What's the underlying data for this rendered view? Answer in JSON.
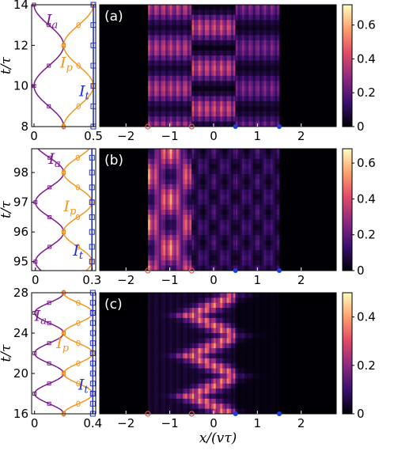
{
  "colors": {
    "Ia": "#7b1c8e",
    "Ip": "#f5961e",
    "It": "#1f2fd8",
    "marker_a": "#e05555",
    "marker_b": "#1c3fe0"
  },
  "chart_data": [
    {
      "type": "line",
      "panel": "(a) side",
      "ylabel": "t/τ",
      "ylim": [
        8,
        14
      ],
      "xlim": [
        -0.02,
        0.52
      ],
      "xticks": [
        "0",
        "0.5"
      ],
      "yticks": [
        "8",
        "10",
        "12",
        "14"
      ],
      "period": 4,
      "series": [
        {
          "name": "I_a",
          "amplitude": [
            0.0,
            0.25
          ],
          "phase": 0.0
        },
        {
          "name": "I_p",
          "amplitude": [
            0.25,
            0.5
          ],
          "phase": 0.5
        },
        {
          "name": "I_t",
          "amplitude": [
            0.5,
            0.5
          ],
          "phase": 0.0
        }
      ],
      "label_positions": {
        "I_a": [
          0.1,
          13.0
        ],
        "I_p": [
          0.22,
          10.9
        ],
        "I_t": [
          0.38,
          9.5
        ]
      }
    },
    {
      "type": "heatmap",
      "panel": "(a)",
      "xlim": [
        -2.6,
        2.8
      ],
      "xticks": [
        "−2",
        "−1",
        "0",
        "1",
        "2"
      ],
      "colorbar": {
        "range": [
          0,
          0.72
        ],
        "ticks": [
          "0",
          "0.2",
          "0.4",
          "0.6"
        ]
      },
      "bright_region": [
        -1.5,
        1.5
      ],
      "markers_open": [
        -1.5,
        -0.5
      ],
      "markers_filled": [
        0.5,
        1.5
      ]
    },
    {
      "type": "line",
      "panel": "(b) side",
      "ylabel": "t/τ",
      "ylim": [
        94.7,
        98.8
      ],
      "xlim": [
        -0.02,
        0.32
      ],
      "xticks": [
        "0",
        "0.3"
      ],
      "yticks": [
        "95",
        "96",
        "97",
        "98"
      ],
      "period": 2,
      "series": [
        {
          "name": "I_a",
          "amplitude": [
            0.0,
            0.15
          ],
          "phase": 0.0
        },
        {
          "name": "I_p",
          "amplitude": [
            0.15,
            0.3
          ],
          "phase": 0.5
        },
        {
          "name": "I_t",
          "amplitude": [
            0.3,
            0.3
          ],
          "phase": 0.0
        }
      ],
      "label_positions": {
        "I_a": [
          0.07,
          98.3
        ],
        "I_p": [
          0.15,
          96.7
        ],
        "I_t": [
          0.2,
          95.2
        ]
      }
    },
    {
      "type": "heatmap",
      "panel": "(b)",
      "xlim": [
        -2.6,
        2.8
      ],
      "xticks": [
        "−2",
        "−1",
        "0",
        "1",
        "2"
      ],
      "colorbar": {
        "range": [
          0,
          0.68
        ],
        "ticks": [
          "0",
          "0.2",
          "0.4",
          "0.6"
        ]
      },
      "bright_region": [
        -1.5,
        1.5
      ],
      "markers_open": [
        -1.5,
        -0.5
      ],
      "markers_filled": [
        0.5,
        1.5
      ]
    },
    {
      "type": "line",
      "panel": "(c) side",
      "ylabel": "t/τ",
      "ylim": [
        16,
        28
      ],
      "xlim": [
        -0.02,
        0.42
      ],
      "xticks": [
        "0",
        "0.4"
      ],
      "yticks": [
        "16",
        "20",
        "24",
        "28"
      ],
      "period": 4,
      "series": [
        {
          "name": "I_a",
          "amplitude": [
            0.0,
            0.2
          ],
          "phase": 0.0
        },
        {
          "name": "I_p",
          "amplitude": [
            0.2,
            0.4
          ],
          "phase": 0.5
        },
        {
          "name": "I_t",
          "amplitude": [
            0.4,
            0.4
          ],
          "phase": 0.0
        }
      ],
      "label_positions": {
        "I_a": [
          0.0,
          25.2
        ],
        "I_p": [
          0.15,
          22.5
        ],
        "I_t": [
          0.3,
          18.4
        ]
      }
    },
    {
      "type": "heatmap",
      "panel": "(c)",
      "xlim": [
        -2.6,
        2.8
      ],
      "xticks": [
        "−2",
        "−1",
        "0",
        "1",
        "2"
      ],
      "xlabel": "x/(vτ)",
      "colorbar": {
        "range": [
          0,
          0.5
        ],
        "ticks": [
          "0",
          "0.2",
          "0.4"
        ]
      },
      "bright_region": [
        -1.5,
        1.5
      ],
      "markers_open": [
        -1.5,
        -0.5
      ],
      "markers_filled": [
        0.5,
        1.5
      ]
    }
  ]
}
